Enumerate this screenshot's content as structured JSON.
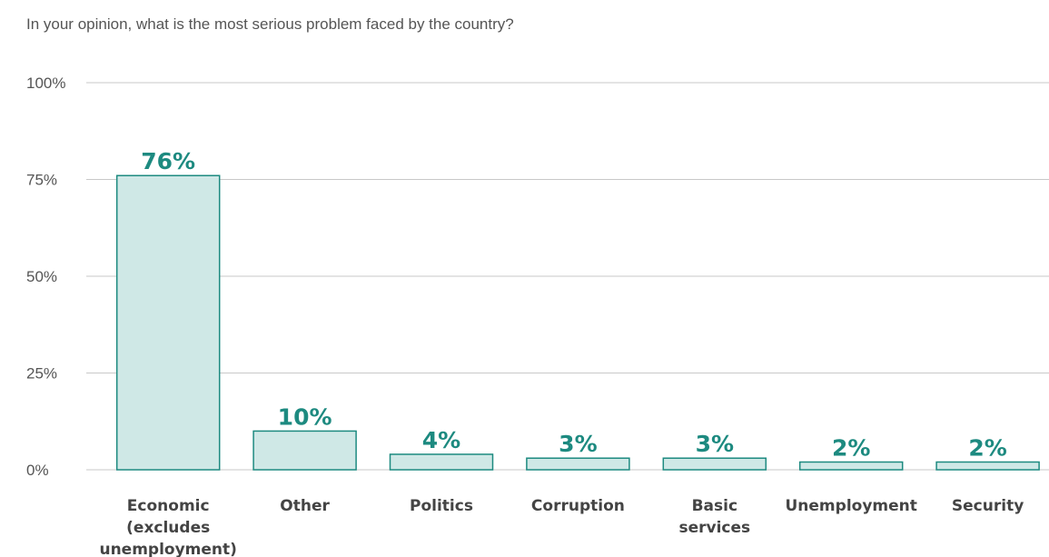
{
  "chart_data": {
    "type": "bar",
    "title": "In your opinion, what is the most serious problem faced by the country?",
    "categories": [
      "Economic (excludes unemployment)",
      "Other",
      "Politics",
      "Corruption",
      "Basic services",
      "Unemployment",
      "Security"
    ],
    "category_lines": [
      [
        "Economic",
        "(excludes",
        "unemployment)"
      ],
      [
        "Other"
      ],
      [
        "Politics"
      ],
      [
        "Corruption"
      ],
      [
        "Basic",
        "services"
      ],
      [
        "Unemployment"
      ],
      [
        "Security"
      ]
    ],
    "values": [
      76,
      10,
      4,
      3,
      3,
      2,
      2
    ],
    "value_labels": [
      "76%",
      "10%",
      "4%",
      "3%",
      "3%",
      "2%",
      "2%"
    ],
    "yticks": [
      0,
      25,
      50,
      75,
      100
    ],
    "ytick_labels": [
      "0%",
      "25%",
      "50%",
      "75%",
      "100%"
    ],
    "ylim": [
      0,
      100
    ],
    "grid": true,
    "legend": "none",
    "colors": {
      "bar_fill": "#cfe8e6",
      "bar_stroke": "#1d8a80",
      "value_text": "#1d8a80",
      "grid": "#c8c8c8",
      "text": "#555555"
    }
  }
}
